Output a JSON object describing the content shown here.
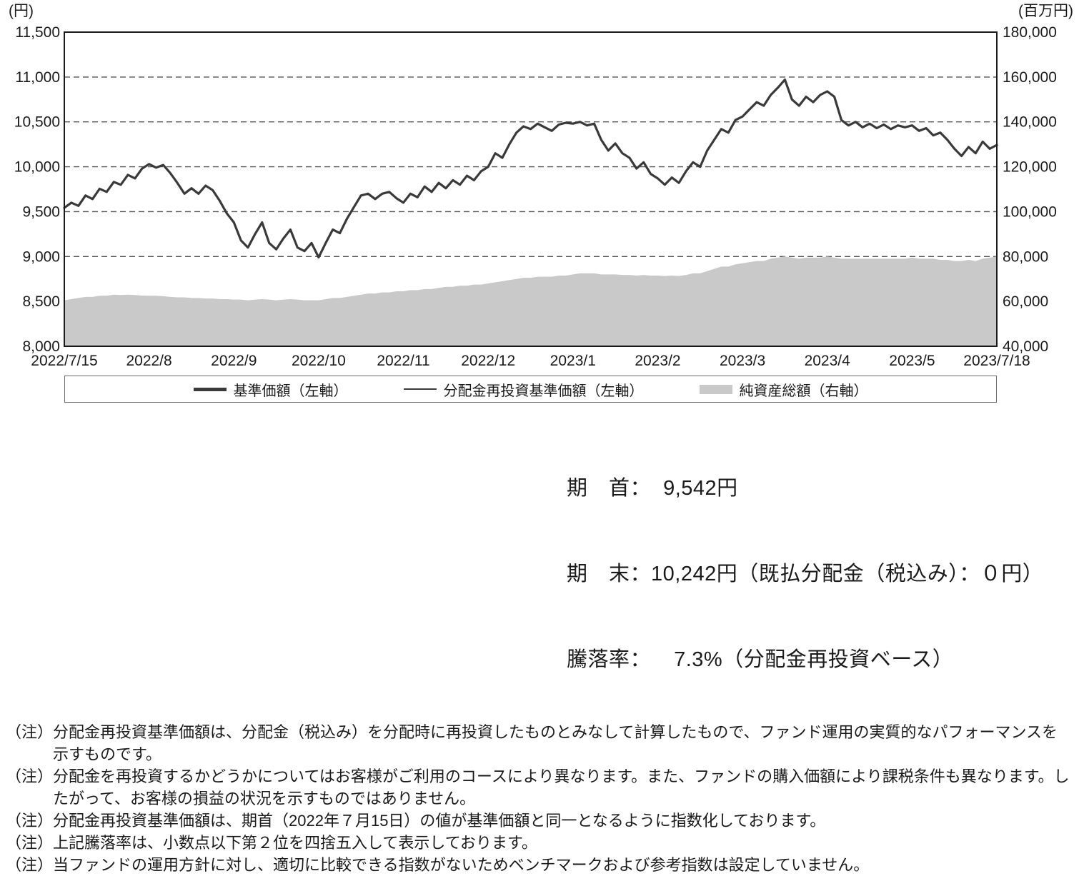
{
  "chart_data": {
    "type": "line",
    "title": "",
    "grid": "dashed-horizontal",
    "legend_position": "bottom-boxed",
    "colors": {
      "line": "#3a3a3a",
      "thin_line": "#3a3a3a",
      "area": "#c9c9c9",
      "border": "#1a1a1a",
      "gridline": "#555555"
    },
    "left_axis": {
      "unit": "(円)",
      "min": 8000,
      "max": 11500,
      "ticks": [
        8000,
        8500,
        9000,
        9500,
        10000,
        10500,
        11000,
        11500
      ]
    },
    "right_axis": {
      "unit": "(百万円)",
      "min": 40000,
      "max": 180000,
      "ticks": [
        40000,
        60000,
        80000,
        100000,
        120000,
        140000,
        160000,
        180000
      ]
    },
    "x_labels": [
      "2022/7/15",
      "2022/8",
      "2022/9",
      "2022/10",
      "2022/11",
      "2022/12",
      "2023/1",
      "2023/2",
      "2023/3",
      "2023/4",
      "2023/5",
      "2023/7/18"
    ],
    "series": [
      {
        "name": "基準価額（左軸）",
        "type": "line",
        "axis": "left",
        "values": [
          9542,
          9600,
          9565,
          9680,
          9640,
          9755,
          9720,
          9830,
          9800,
          9910,
          9870,
          9980,
          10030,
          9990,
          10020,
          9930,
          9820,
          9700,
          9760,
          9700,
          9790,
          9740,
          9620,
          9480,
          9380,
          9180,
          9100,
          9250,
          9380,
          9150,
          9080,
          9200,
          9300,
          9100,
          9060,
          9150,
          8990,
          9150,
          9300,
          9260,
          9420,
          9550,
          9680,
          9700,
          9640,
          9700,
          9720,
          9650,
          9600,
          9700,
          9660,
          9780,
          9720,
          9820,
          9760,
          9850,
          9800,
          9900,
          9850,
          9950,
          10000,
          10150,
          10100,
          10250,
          10380,
          10450,
          10420,
          10480,
          10440,
          10400,
          10470,
          10490,
          10480,
          10500,
          10460,
          10480,
          10300,
          10180,
          10260,
          10150,
          10100,
          9980,
          10050,
          9920,
          9870,
          9800,
          9880,
          9820,
          9950,
          10050,
          10000,
          10180,
          10300,
          10420,
          10380,
          10520,
          10560,
          10640,
          10720,
          10680,
          10800,
          10880,
          10970,
          10750,
          10680,
          10780,
          10720,
          10800,
          10840,
          10780,
          10520,
          10460,
          10500,
          10440,
          10480,
          10430,
          10470,
          10420,
          10460,
          10440,
          10460,
          10400,
          10430,
          10350,
          10380,
          10300,
          10200,
          10120,
          10220,
          10150,
          10280,
          10200,
          10242
        ]
      },
      {
        "name": "分配金再投資基準価額（左軸）",
        "type": "line",
        "axis": "left",
        "values": "same_as_series_0"
      },
      {
        "name": "純資産総額（右軸）",
        "type": "area",
        "axis": "right",
        "values": [
          60500,
          61000,
          61500,
          62000,
          62000,
          62500,
          62500,
          63000,
          62800,
          63000,
          62800,
          62600,
          62500,
          62500,
          62300,
          62000,
          61800,
          61800,
          61500,
          61500,
          61300,
          61300,
          61000,
          61000,
          60800,
          60800,
          60500,
          60800,
          61000,
          60800,
          60500,
          60800,
          61000,
          60800,
          60500,
          60500,
          60500,
          61000,
          61500,
          61500,
          62000,
          62500,
          63000,
          63500,
          63500,
          64000,
          64000,
          64500,
          64500,
          65000,
          65000,
          65500,
          65500,
          66000,
          66500,
          66500,
          67000,
          67000,
          67500,
          67500,
          68000,
          68500,
          69000,
          69500,
          70000,
          70500,
          70500,
          71000,
          71000,
          71000,
          71500,
          71500,
          72000,
          72500,
          72500,
          72500,
          72000,
          72000,
          72000,
          71800,
          71800,
          71500,
          71800,
          71500,
          71500,
          71300,
          71500,
          71300,
          71800,
          72500,
          72500,
          73500,
          74500,
          75500,
          75500,
          76500,
          77000,
          77500,
          78000,
          78000,
          79000,
          79500,
          80000,
          79500,
          79000,
          79500,
          79500,
          79500,
          80000,
          79500,
          79000,
          79000,
          79000,
          79000,
          79000,
          79000,
          79000,
          79000,
          79000,
          79000,
          79500,
          79000,
          79000,
          79000,
          78500,
          78500,
          78000,
          78000,
          78500,
          78000,
          79000,
          79500,
          80000
        ]
      }
    ]
  },
  "stats": {
    "line1": "期　首：  9,542円",
    "line2": "期　末：10,242円（既払分配金（税込み）：０円）",
    "line3": "騰落率：　  7.3%（分配金再投資ベース）"
  },
  "notes": {
    "marker": "（注）",
    "items": [
      "分配金再投資基準価額は、分配金（税込み）を分配時に再投資したものとみなして計算したもので、ファンド運用の実質的なパフォーマンスを示すものです。",
      "分配金を再投資するかどうかについてはお客様がご利用のコースにより異なります。また、ファンドの購入価額により課税条件も異なります。したがって、お客様の損益の状況を示すものではありません。",
      "分配金再投資基準価額は、期首（2022年７月15日）の値が基準価額と同一となるように指数化しております。",
      "上記騰落率は、小数点以下第２位を四捨五入して表示しております。",
      "当ファンドの運用方針に対し、適切に比較できる指数がないためベンチマークおよび参考指数は設定していません。"
    ]
  }
}
